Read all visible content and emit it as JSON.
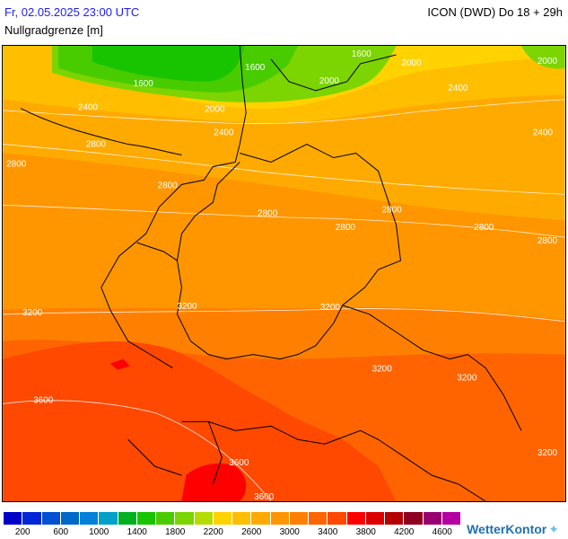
{
  "header": {
    "datetime": "Fr, 02.05.2025 23:00 UTC",
    "model": "ICON (DWD) Do 18 + 29h",
    "parameter": "Nullgradgrenze [m]"
  },
  "map": {
    "contour_labels": [
      "1600",
      "1600",
      "1600",
      "2000",
      "2000",
      "2000",
      "2000",
      "2400",
      "2400",
      "2400",
      "2400",
      "2800",
      "2800",
      "2800",
      "2800",
      "2800",
      "2800",
      "2800",
      "2800",
      "3200",
      "3200",
      "3200",
      "3200",
      "3200",
      "3200",
      "3600",
      "3600",
      "3600"
    ]
  },
  "legend": {
    "colors": [
      "#0000c8",
      "#0026d6",
      "#0050d2",
      "#0068c8",
      "#0080d8",
      "#00a0c8",
      "#00b020",
      "#18c400",
      "#48cc00",
      "#7cd400",
      "#b4dc00",
      "#ffd200",
      "#ffbe00",
      "#ffaa00",
      "#ff9600",
      "#ff8000",
      "#ff6400",
      "#ff4800",
      "#ff0000",
      "#dc0000",
      "#b40000",
      "#900020",
      "#980070",
      "#b400a0"
    ],
    "labels": [
      "200",
      "600",
      "1000",
      "1400",
      "1800",
      "2200",
      "2600",
      "3000",
      "3400",
      "3800",
      "4200",
      "4600"
    ]
  },
  "brand": {
    "name": "WetterKontor"
  }
}
